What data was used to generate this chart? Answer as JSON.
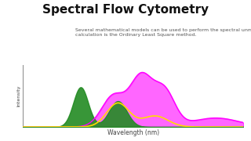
{
  "title": "Spectral Flow Cytometry",
  "subtitle": "Several mathematical models can be used to perform the spectral unmixing calculation. However, the most widely used\ncalculation is the Ordinary Least Square method.",
  "xlabel": "Wavelength (nm)",
  "ylabel": "Intensity",
  "background_color": "#ffffff",
  "title_fontsize": 11,
  "subtitle_fontsize": 4.5,
  "xlabel_fontsize": 5.5,
  "ylabel_fontsize": 4.5,
  "green_fill_color": "#228B22",
  "magenta_line_color": "#ff00ff",
  "yellow_line_color": "#ffdd00",
  "green_alpha": 0.9,
  "magenta_fill_alpha": 0.6
}
